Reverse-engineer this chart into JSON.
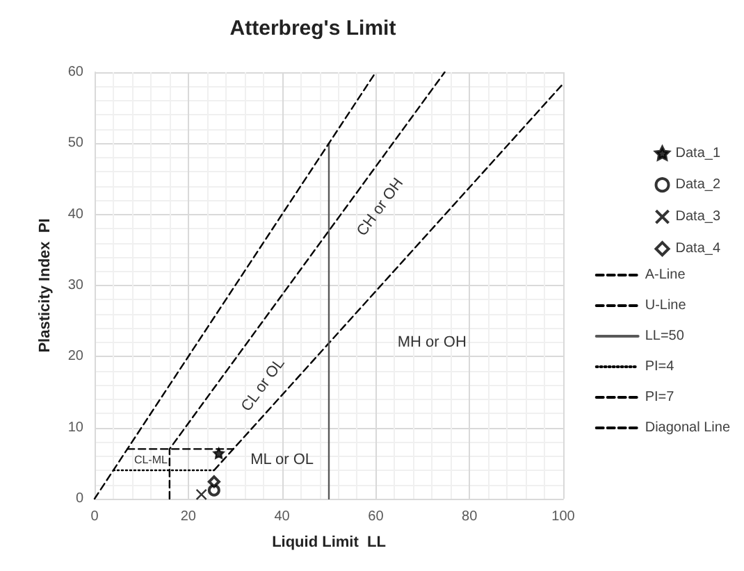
{
  "chart_data": {
    "type": "scatter",
    "title": "Atterbreg's Limit",
    "xlabel": "Liquid Limit  LL",
    "ylabel": "Plasticity Index  PI",
    "xlim": [
      0,
      100
    ],
    "xticks": [
      0,
      20,
      40,
      60,
      80,
      100
    ],
    "ylim": [
      0,
      60
    ],
    "yticks": [
      0,
      10,
      20,
      30,
      40,
      50,
      60
    ],
    "grid": true,
    "legend": "right",
    "series": [
      {
        "name": "Data_1",
        "marker": "star",
        "color": "#000000",
        "x": [
          26.5
        ],
        "values": [
          6.4
        ]
      },
      {
        "name": "Data_2",
        "marker": "circle",
        "color": "#000000",
        "x": [
          25.5
        ],
        "values": [
          1.2
        ]
      },
      {
        "name": "Data_3",
        "marker": "cross",
        "color": "#000000",
        "x": [
          22.8
        ],
        "values": [
          0.6
        ]
      },
      {
        "name": "Data_4",
        "marker": "diamond",
        "color": "#000000",
        "x": [
          25.5
        ],
        "values": [
          2.4
        ]
      },
      {
        "name": "A-Line",
        "type": "line",
        "marker": "none",
        "line_style": "dashed",
        "color": "#000000",
        "x": [
          25.5,
          29.6,
          100
        ],
        "values": [
          4,
          7,
          58.4
        ]
      },
      {
        "name": "U-Line",
        "type": "line",
        "marker": "none",
        "line_style": "dashed",
        "color": "#000000",
        "x": [
          16,
          16,
          74.7
        ],
        "values": [
          0,
          7,
          60
        ]
      },
      {
        "name": "LL=50",
        "type": "line",
        "marker": "none",
        "line_style": "solid",
        "color": "#595959",
        "x": [
          50,
          50
        ],
        "values": [
          0,
          50
        ]
      },
      {
        "name": "PI=4",
        "type": "line",
        "marker": "none",
        "line_style": "dotted",
        "color": "#000000",
        "x": [
          4,
          25.5
        ],
        "values": [
          4,
          4
        ]
      },
      {
        "name": "PI=7",
        "type": "line",
        "marker": "none",
        "line_style": "dashed",
        "color": "#000000",
        "x": [
          7,
          29.6
        ],
        "values": [
          7,
          7
        ]
      },
      {
        "name": "Diagonal Line",
        "type": "line",
        "marker": "none",
        "line_style": "dashed",
        "color": "#000000",
        "x": [
          0,
          60
        ],
        "values": [
          0,
          60
        ]
      }
    ],
    "annotations": [
      "CL-ML",
      "ML or OL",
      "CL or OL",
      "CH or OH",
      "MH or OH"
    ]
  }
}
